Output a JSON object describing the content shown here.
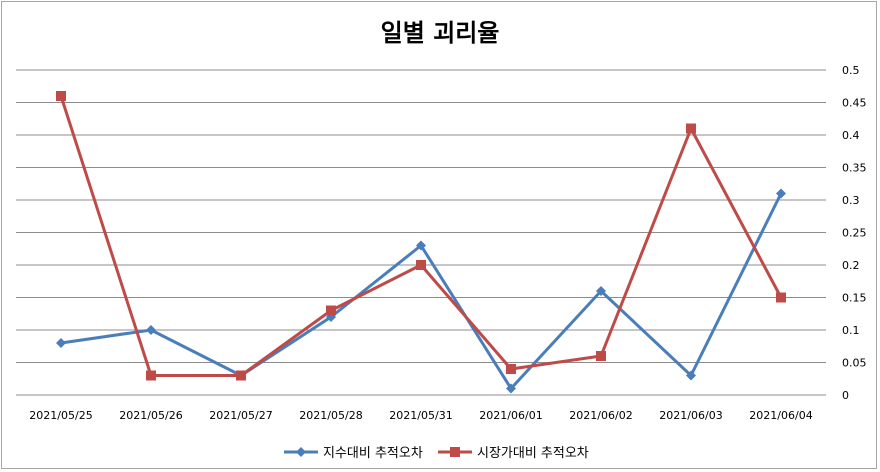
{
  "chart_data": {
    "type": "line",
    "title": "일별 괴리율",
    "categories": [
      "2021/05/25",
      "2021/05/26",
      "2021/05/27",
      "2021/05/28",
      "2021/05/31",
      "2021/06/01",
      "2021/06/02",
      "2021/06/03",
      "2021/06/04"
    ],
    "y_ticks": [
      "0",
      "0.05",
      "0.1",
      "0.15",
      "0.2",
      "0.25",
      "0.3",
      "0.35",
      "0.4",
      "0.45",
      "0.5"
    ],
    "ylim": [
      0,
      0.5
    ],
    "y_axis_position": "right",
    "grid": true,
    "legend_position": "bottom",
    "series": [
      {
        "name": "지수대비 추적오차",
        "color": "#4a7ebb",
        "marker": "diamond",
        "values": [
          0.08,
          0.1,
          0.03,
          0.12,
          0.23,
          0.01,
          0.16,
          0.03,
          0.31
        ]
      },
      {
        "name": "시장가대비 추적오차",
        "color": "#be4b48",
        "marker": "square",
        "values": [
          0.46,
          0.03,
          0.03,
          0.13,
          0.2,
          0.04,
          0.06,
          0.41,
          0.15
        ]
      }
    ]
  }
}
